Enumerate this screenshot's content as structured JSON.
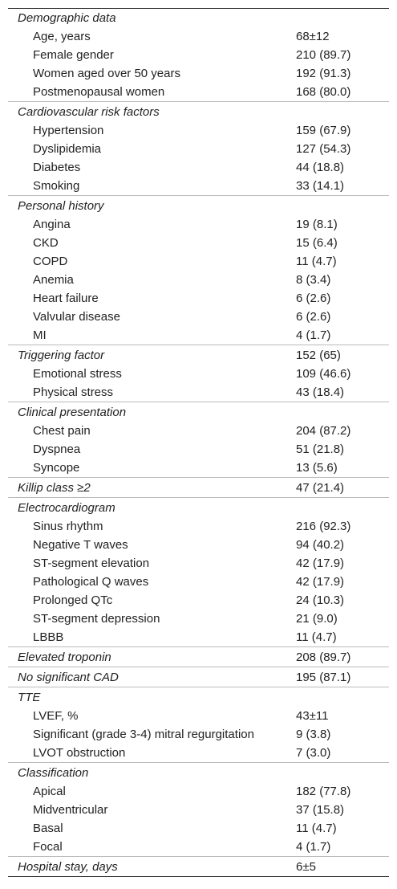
{
  "table": {
    "sections": [
      {
        "title": "Demographic data",
        "rows": [
          {
            "label": "Age, years",
            "value": "68±12"
          },
          {
            "label": "Female gender",
            "value": "210 (89.7)"
          },
          {
            "label": "Women aged over 50 years",
            "value": "192 (91.3)"
          },
          {
            "label": "Postmenopausal women",
            "value": "168 (80.0)"
          }
        ]
      },
      {
        "title": "Cardiovascular risk factors",
        "rows": [
          {
            "label": "Hypertension",
            "value": "159 (67.9)"
          },
          {
            "label": "Dyslipidemia",
            "value": "127 (54.3)"
          },
          {
            "label": "Diabetes",
            "value": "44 (18.8)"
          },
          {
            "label": "Smoking",
            "value": "33 (14.1)"
          }
        ]
      },
      {
        "title": "Personal history",
        "rows": [
          {
            "label": "Angina",
            "value": "19 (8.1)"
          },
          {
            "label": "CKD",
            "value": "15 (6.4)"
          },
          {
            "label": "COPD",
            "value": "11 (4.7)"
          },
          {
            "label": "Anemia",
            "value": "8 (3.4)"
          },
          {
            "label": "Heart failure",
            "value": "6 (2.6)"
          },
          {
            "label": "Valvular disease",
            "value": "6 (2.6)"
          },
          {
            "label": "MI",
            "value": "4 (1.7)"
          }
        ]
      },
      {
        "title": "Triggering factor",
        "value": "152 (65)",
        "rows": [
          {
            "label": "Emotional stress",
            "value": "109 (46.6)"
          },
          {
            "label": "Physical stress",
            "value": "43 (18.4)"
          }
        ]
      },
      {
        "title": "Clinical presentation",
        "rows": [
          {
            "label": "Chest pain",
            "value": "204 (87.2)"
          },
          {
            "label": "Dyspnea",
            "value": "51 (21.8)"
          },
          {
            "label": "Syncope",
            "value": "13 (5.6)"
          }
        ]
      },
      {
        "title": "Killip class ≥2",
        "value": "47 (21.4)",
        "rows": []
      },
      {
        "title": "Electrocardiogram",
        "rows": [
          {
            "label": "Sinus rhythm",
            "value": "216 (92.3)"
          },
          {
            "label": "Negative T waves",
            "value": "94 (40.2)"
          },
          {
            "label": "ST-segment elevation",
            "value": "42 (17.9)"
          },
          {
            "label": "Pathological Q waves",
            "value": "42 (17.9)"
          },
          {
            "label": "Prolonged QTc",
            "value": "24 (10.3)"
          },
          {
            "label": "ST-segment depression",
            "value": "21 (9.0)"
          },
          {
            "label": "LBBB",
            "value": "11 (4.7)"
          }
        ]
      },
      {
        "title": "Elevated troponin",
        "value": "208 (89.7)",
        "rows": []
      },
      {
        "title": "No significant CAD",
        "value": "195 (87.1)",
        "rows": []
      },
      {
        "title": "TTE",
        "rows": [
          {
            "label": "LVEF, %",
            "value": "43±11"
          },
          {
            "label": "Significant (grade 3-4) mitral regurgitation",
            "value": "9 (3.8)"
          },
          {
            "label": "LVOT obstruction",
            "value": "7 (3.0)"
          }
        ]
      },
      {
        "title": "Classification",
        "rows": [
          {
            "label": "Apical",
            "value": "182 (77.8)"
          },
          {
            "label": "Midventricular",
            "value": "37 (15.8)"
          },
          {
            "label": "Basal",
            "value": "11 (4.7)"
          },
          {
            "label": "Focal",
            "value": "4 (1.7)"
          }
        ]
      },
      {
        "title": "Hospital stay, days",
        "value": "6±5",
        "rows": []
      }
    ]
  }
}
